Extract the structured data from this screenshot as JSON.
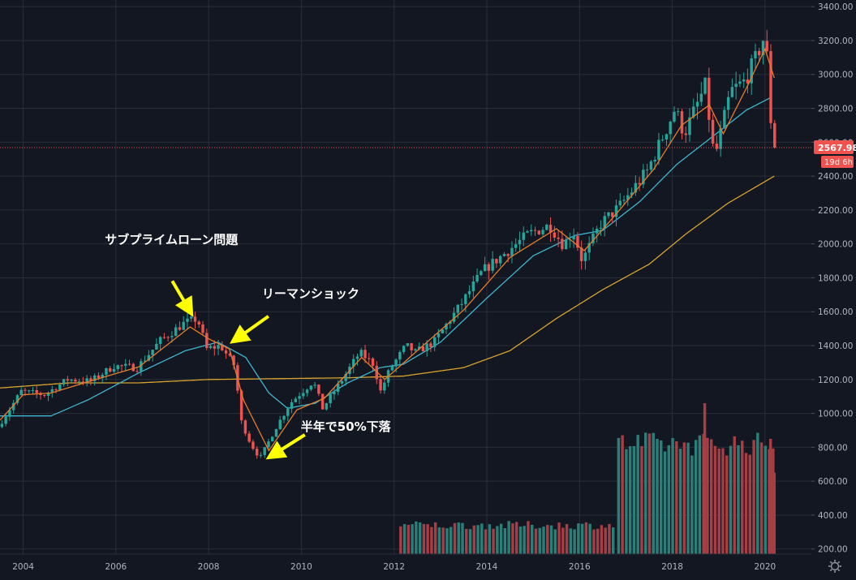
{
  "chart_data": {
    "type": "candlestick",
    "instrument": "",
    "x_range": [
      2003.5,
      2021.0
    ],
    "ylim": [
      170,
      3420
    ],
    "y_ticks": [
      200,
      400,
      600,
      800,
      1000,
      1200,
      1400,
      1600,
      1800,
      2000,
      2200,
      2400,
      2600,
      2800,
      3000,
      3200,
      3400
    ],
    "y_tick_labels": [
      "200.00",
      "400.00",
      "600.00",
      "800.00",
      "1000.00",
      "1200.00",
      "1400.00",
      "1600.00",
      "1800.00",
      "2000.00",
      "2200.00",
      "2400.00",
      "2600.00",
      "2800.00",
      "3000.00",
      "3200.00",
      "3400.00"
    ],
    "x_ticks": [
      2004,
      2006,
      2008,
      2010,
      2012,
      2014,
      2016,
      2018,
      2020
    ],
    "x_tick_labels": [
      "2004",
      "2006",
      "2008",
      "2010",
      "2012",
      "2014",
      "2016",
      "2018",
      "2020"
    ],
    "grid": true,
    "anchors": [
      [
        2003.5,
        920
      ],
      [
        2004.0,
        1130
      ],
      [
        2004.5,
        1110
      ],
      [
        2005.0,
        1200
      ],
      [
        2005.5,
        1190
      ],
      [
        2006.0,
        1280
      ],
      [
        2006.5,
        1270
      ],
      [
        2007.0,
        1430
      ],
      [
        2007.5,
        1530
      ],
      [
        2007.8,
        1560
      ],
      [
        2008.0,
        1380
      ],
      [
        2008.3,
        1400
      ],
      [
        2008.6,
        1280
      ],
      [
        2008.75,
        950
      ],
      [
        2008.95,
        820
      ],
      [
        2009.15,
        735
      ],
      [
        2009.5,
        920
      ],
      [
        2009.8,
        1060
      ],
      [
        2010.3,
        1190
      ],
      [
        2010.5,
        1030
      ],
      [
        2010.9,
        1190
      ],
      [
        2011.3,
        1360
      ],
      [
        2011.6,
        1290
      ],
      [
        2011.75,
        1130
      ],
      [
        2011.95,
        1260
      ],
      [
        2012.3,
        1400
      ],
      [
        2012.5,
        1360
      ],
      [
        2012.9,
        1420
      ],
      [
        2013.5,
        1650
      ],
      [
        2013.95,
        1840
      ],
      [
        2014.5,
        1960
      ],
      [
        2014.95,
        2060
      ],
      [
        2015.4,
        2110
      ],
      [
        2015.7,
        1990
      ],
      [
        2015.9,
        2080
      ],
      [
        2016.1,
        1900
      ],
      [
        2016.5,
        2120
      ],
      [
        2016.9,
        2220
      ],
      [
        2017.5,
        2430
      ],
      [
        2017.95,
        2700
      ],
      [
        2018.1,
        2800
      ],
      [
        2018.3,
        2650
      ],
      [
        2018.75,
        2930
      ],
      [
        2018.95,
        2500
      ],
      [
        2019.3,
        2900
      ],
      [
        2019.6,
        2960
      ],
      [
        2019.85,
        3100
      ],
      [
        2020.05,
        3240
      ],
      [
        2020.12,
        2960
      ],
      [
        2020.2,
        2568
      ]
    ],
    "ma_fast_anchors": [
      [
        2003.5,
        960
      ],
      [
        2004.0,
        1110
      ],
      [
        2004.6,
        1120
      ],
      [
        2005.5,
        1195
      ],
      [
        2006.5,
        1275
      ],
      [
        2007.6,
        1510
      ],
      [
        2008.0,
        1440
      ],
      [
        2008.45,
        1380
      ],
      [
        2008.75,
        1080
      ],
      [
        2009.3,
        780
      ],
      [
        2009.9,
        1020
      ],
      [
        2010.5,
        1090
      ],
      [
        2011.3,
        1330
      ],
      [
        2011.8,
        1200
      ],
      [
        2012.5,
        1370
      ],
      [
        2013.5,
        1610
      ],
      [
        2014.5,
        1920
      ],
      [
        2015.5,
        2090
      ],
      [
        2016.1,
        1960
      ],
      [
        2016.8,
        2180
      ],
      [
        2017.6,
        2440
      ],
      [
        2018.2,
        2700
      ],
      [
        2018.8,
        2820
      ],
      [
        2019.1,
        2650
      ],
      [
        2019.6,
        2920
      ],
      [
        2020.0,
        3150
      ],
      [
        2020.2,
        2980
      ]
    ],
    "ma_mid_anchors": [
      [
        2003.5,
        985
      ],
      [
        2004.6,
        985
      ],
      [
        2005.4,
        1080
      ],
      [
        2006.5,
        1240
      ],
      [
        2007.5,
        1370
      ],
      [
        2008.2,
        1420
      ],
      [
        2008.8,
        1330
      ],
      [
        2009.3,
        1120
      ],
      [
        2009.7,
        1030
      ],
      [
        2010.3,
        1060
      ],
      [
        2011.0,
        1180
      ],
      [
        2011.7,
        1270
      ],
      [
        2012.2,
        1290
      ],
      [
        2013.0,
        1420
      ],
      [
        2014.0,
        1680
      ],
      [
        2015.0,
        1930
      ],
      [
        2015.9,
        2050
      ],
      [
        2016.5,
        2080
      ],
      [
        2017.3,
        2250
      ],
      [
        2018.1,
        2470
      ],
      [
        2018.9,
        2640
      ],
      [
        2019.6,
        2790
      ],
      [
        2020.1,
        2860
      ]
    ],
    "ma_slow_anchors": [
      [
        2003.5,
        1150
      ],
      [
        2005.0,
        1180
      ],
      [
        2006.5,
        1180
      ],
      [
        2008.0,
        1200
      ],
      [
        2009.5,
        1205
      ],
      [
        2011.0,
        1210
      ],
      [
        2012.2,
        1220
      ],
      [
        2013.5,
        1270
      ],
      [
        2014.5,
        1370
      ],
      [
        2015.5,
        1560
      ],
      [
        2016.5,
        1730
      ],
      [
        2017.5,
        1880
      ],
      [
        2018.3,
        2060
      ],
      [
        2019.2,
        2240
      ],
      [
        2020.2,
        2400
      ]
    ],
    "volume": {
      "scale_units_to_axis": 1,
      "blocks": [
        {
          "from": 2012.1,
          "to": 2016.8,
          "level": 340,
          "jitter": 25
        },
        {
          "from": 2016.8,
          "to": 2020.2,
          "level": 820,
          "jitter": 70
        }
      ],
      "peaks": [
        [
          2018.7,
          1060
        ],
        [
          2020.12,
          850
        ],
        [
          2020.2,
          650
        ]
      ]
    },
    "last_price": 2567.98,
    "last_price_label": "2567.98",
    "countdown_label": "19d 6h",
    "colors": {
      "up": "#26a69a",
      "down": "#ef5350",
      "ma_fast": "#e57c2b",
      "ma_mid": "#3fb6d0",
      "ma_slow": "#d8a32b",
      "volume_up": "#2a7f79",
      "volume_down": "#a63e44",
      "annotation_arrow": "#ffff00",
      "last_price_tag": "#ef5350"
    },
    "annotations": [
      {
        "text": "サブプライムローン問題",
        "target_x": 2007.6,
        "target_y": 1580
      },
      {
        "text": "リーマンショック",
        "target_x": 2008.45,
        "target_y": 1420
      },
      {
        "text": "半年で50%下落",
        "target_x": 2009.2,
        "target_y": 730
      }
    ]
  },
  "ui": {
    "settings_icon": "gear-icon"
  }
}
